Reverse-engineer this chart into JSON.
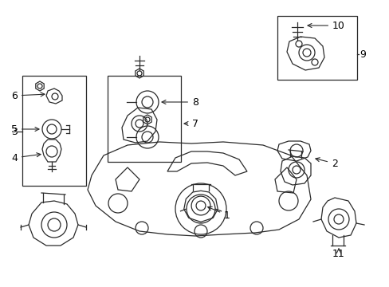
{
  "background_color": "#ffffff",
  "line_color": "#2a2a2a",
  "fig_width": 4.89,
  "fig_height": 3.6,
  "dpi": 100
}
